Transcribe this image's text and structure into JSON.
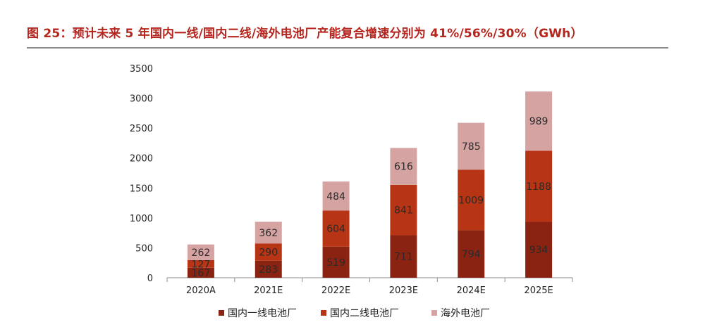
{
  "figure": {
    "title": "图 25：预计未来 5 年国内一线/国内二线/海外电池厂产能复合增速分别为 41%/56%/30%（GWh）"
  },
  "chart_data": {
    "type": "bar",
    "stacked": true,
    "title": "",
    "xlabel": "",
    "ylabel": "",
    "ylim": [
      0,
      3500
    ],
    "yticks": [
      0,
      500,
      1000,
      1500,
      2000,
      2500,
      3000,
      3500
    ],
    "categories": [
      "2020A",
      "2021E",
      "2022E",
      "2023E",
      "2024E",
      "2025E"
    ],
    "series": [
      {
        "name": "国内一线电池厂",
        "color": "#8b2312",
        "values": [
          167,
          283,
          519,
          711,
          794,
          934
        ]
      },
      {
        "name": "国内二线电池厂",
        "color": "#b73414",
        "values": [
          127,
          290,
          604,
          841,
          1009,
          1188
        ]
      },
      {
        "name": "海外电池厂",
        "color": "#d6a3a3",
        "values": [
          262,
          362,
          484,
          616,
          785,
          989
        ]
      }
    ],
    "legend_position": "bottom",
    "grid": false
  }
}
